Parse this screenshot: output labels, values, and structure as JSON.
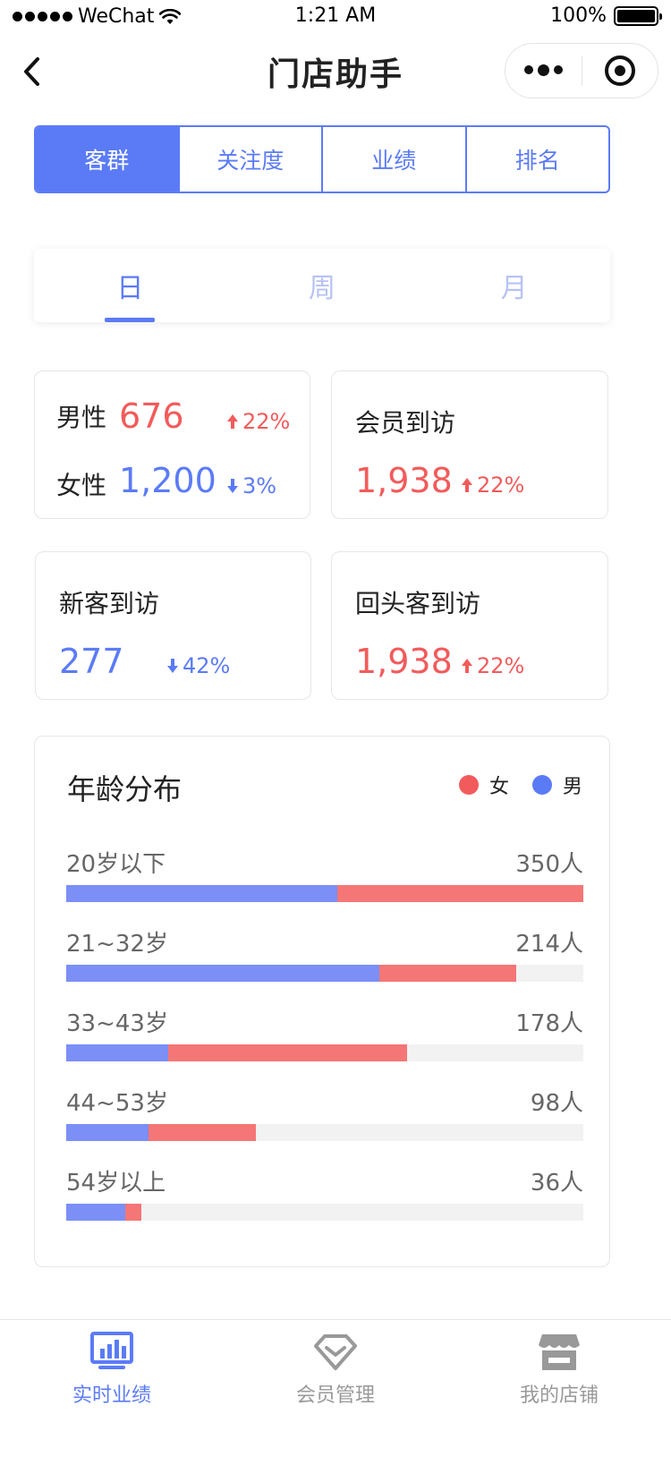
{
  "status_bar": {
    "carrier": "WeChat",
    "time": "1:21 AM",
    "battery": "100%"
  },
  "nav": {
    "title": "门店助手"
  },
  "tabs": [
    {
      "label": "客群",
      "active": true
    },
    {
      "label": "关注度",
      "active": false
    },
    {
      "label": "业绩",
      "active": false
    },
    {
      "label": "排名",
      "active": false
    }
  ],
  "period_tabs": [
    {
      "label": "日",
      "active": true
    },
    {
      "label": "周",
      "active": false
    },
    {
      "label": "月",
      "active": false
    }
  ],
  "gender_card": {
    "male_label": "男性",
    "male_value": "676",
    "male_delta": "22%",
    "male_trend": "up",
    "female_label": "女性",
    "female_value": "1,200",
    "female_delta": "3%",
    "female_trend": "down"
  },
  "member_card": {
    "label": "会员到访",
    "value": "1,938",
    "delta": "22%",
    "trend": "up"
  },
  "new_card": {
    "label": "新客到访",
    "value": "277",
    "delta": "42%",
    "trend": "down"
  },
  "return_card": {
    "label": "回头客到访",
    "value": "1,938",
    "delta": "22%",
    "trend": "up"
  },
  "age": {
    "title": "年龄分布",
    "legend_female": "女",
    "legend_male": "男",
    "colors": {
      "female": "#f25b5b",
      "male": "#5b7bf6"
    },
    "rows": [
      {
        "label": "20岁以下",
        "count": "350人",
        "male_fraction": 0.525,
        "female_fraction": 0.475
      },
      {
        "label": "21~32岁",
        "count": "214人",
        "male_fraction": 0.605,
        "female_fraction": 0.265
      },
      {
        "label": "33~43岁",
        "count": "178人",
        "male_fraction": 0.197,
        "female_fraction": 0.463
      },
      {
        "label": "44~53岁",
        "count": "98人",
        "male_fraction": 0.159,
        "female_fraction": 0.208
      },
      {
        "label": "54岁以上",
        "count": "36人",
        "male_fraction": 0.114,
        "female_fraction": 0.032
      }
    ]
  },
  "tab_bar": {
    "items": [
      {
        "label": "实时业绩",
        "icon": "chart-monitor-icon",
        "active": true
      },
      {
        "label": "会员管理",
        "icon": "diamond-icon",
        "active": false
      },
      {
        "label": "我的店铺",
        "icon": "store-icon",
        "active": false
      }
    ]
  }
}
